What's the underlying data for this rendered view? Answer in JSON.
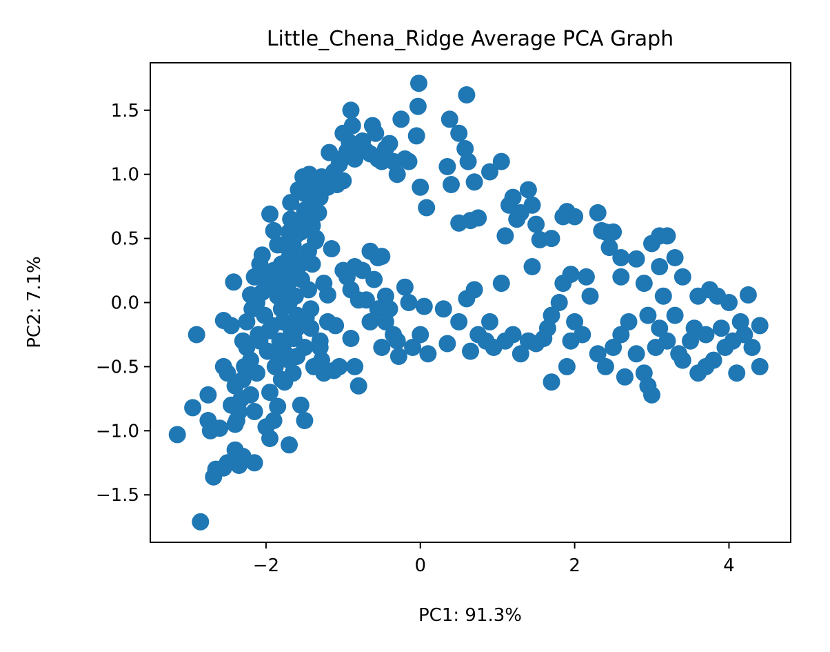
{
  "chart_data": {
    "type": "scatter",
    "title": "Little_Chena_Ridge Average PCA Graph",
    "xlabel": "PC1: 91.3%",
    "ylabel": "PC2: 7.1%",
    "xlim": [
      -3.5,
      4.8
    ],
    "ylim": [
      -1.87,
      1.87
    ],
    "xticks": [
      -2,
      0,
      2,
      4
    ],
    "xtick_labels": [
      "−2",
      "0",
      "2",
      "4"
    ],
    "yticks": [
      -1.5,
      -1.0,
      -0.5,
      0.0,
      0.5,
      1.0,
      1.5
    ],
    "ytick_labels": [
      "−1.5",
      "−1.0",
      "−0.5",
      "0.0",
      "0.5",
      "1.0",
      "1.5"
    ],
    "grid": false,
    "color": "#1f77b4",
    "series": [
      {
        "points": [
          [
            -3.15,
            -1.03
          ],
          [
            -2.85,
            -1.71
          ],
          [
            -2.9,
            -0.25
          ],
          [
            -2.95,
            -0.82
          ],
          [
            -2.75,
            -0.72
          ],
          [
            -2.75,
            -0.92
          ],
          [
            -2.72,
            -1.0
          ],
          [
            -2.68,
            -1.36
          ],
          [
            -2.65,
            -1.3
          ],
          [
            -2.55,
            -1.29
          ],
          [
            -2.5,
            -1.25
          ],
          [
            -2.6,
            -0.98
          ],
          [
            -2.55,
            -0.5
          ],
          [
            -2.5,
            -0.55
          ],
          [
            -2.55,
            -0.14
          ],
          [
            -2.45,
            -0.18
          ],
          [
            -2.45,
            -0.8
          ],
          [
            -2.4,
            -0.65
          ],
          [
            -2.4,
            -0.95
          ],
          [
            -2.4,
            -1.15
          ],
          [
            -2.35,
            -1.27
          ],
          [
            -2.3,
            -1.2
          ],
          [
            -2.3,
            -0.6
          ],
          [
            -2.3,
            -0.3
          ],
          [
            -2.25,
            -0.15
          ],
          [
            -2.2,
            -0.45
          ],
          [
            -2.2,
            -0.72
          ],
          [
            -2.15,
            -1.25
          ],
          [
            -2.15,
            -0.85
          ],
          [
            -2.12,
            -0.55
          ],
          [
            -2.1,
            -0.25
          ],
          [
            -2.05,
            0.08
          ],
          [
            -2.0,
            -0.97
          ],
          [
            -1.95,
            -1.06
          ],
          [
            -1.9,
            -0.92
          ],
          [
            -1.85,
            -0.81
          ],
          [
            -1.8,
            -0.6
          ],
          [
            -1.75,
            -0.4
          ],
          [
            -1.7,
            -1.11
          ],
          [
            -1.65,
            -0.55
          ],
          [
            -1.55,
            -0.8
          ],
          [
            -1.5,
            -0.92
          ],
          [
            -2.42,
            0.16
          ],
          [
            -2.2,
            0.06
          ],
          [
            -2.15,
            0.2
          ],
          [
            -2.08,
            0.3
          ],
          [
            -2.05,
            0.37
          ],
          [
            -1.95,
            0.69
          ],
          [
            -1.9,
            0.56
          ],
          [
            -1.85,
            0.45
          ],
          [
            -1.85,
            0.05
          ],
          [
            -1.8,
            0.15
          ],
          [
            -1.8,
            -0.05
          ],
          [
            -1.78,
            -0.15
          ],
          [
            -1.75,
            -0.3
          ],
          [
            -1.72,
            0.25
          ],
          [
            -1.7,
            0.35
          ],
          [
            -1.7,
            0.55
          ],
          [
            -1.68,
            0.65
          ],
          [
            -1.65,
            0.45
          ],
          [
            -1.62,
            0.05
          ],
          [
            -1.6,
            -0.1
          ],
          [
            -1.6,
            -0.2
          ],
          [
            -1.58,
            0.2
          ],
          [
            -1.55,
            0.3
          ],
          [
            -1.55,
            0.55
          ],
          [
            -1.52,
            0.66
          ],
          [
            -1.5,
            0.72
          ],
          [
            -1.5,
            0.85
          ],
          [
            -1.48,
            0.95
          ],
          [
            -1.45,
            0.4
          ],
          [
            -1.45,
            0.1
          ],
          [
            -1.42,
            -0.05
          ],
          [
            -1.4,
            0.3
          ],
          [
            -1.4,
            0.6
          ],
          [
            -1.38,
            0.78
          ],
          [
            -1.35,
            0.9
          ],
          [
            -1.35,
            0.5
          ],
          [
            -1.32,
            0.7
          ],
          [
            -1.3,
            0.82
          ],
          [
            -1.3,
            -0.3
          ],
          [
            -1.28,
            -0.45
          ],
          [
            -1.25,
            0.15
          ],
          [
            -1.2,
            0.06
          ],
          [
            -1.2,
            -0.15
          ],
          [
            -1.18,
            1.17
          ],
          [
            -1.15,
            0.42
          ],
          [
            -1.12,
            -0.53
          ],
          [
            -1.1,
            -0.18
          ],
          [
            -1.05,
            1.08
          ],
          [
            -1.0,
            0.95
          ],
          [
            -1.0,
            1.32
          ],
          [
            -0.95,
            1.18
          ],
          [
            -0.9,
            1.5
          ],
          [
            -0.88,
            1.38
          ],
          [
            -0.85,
            1.12
          ],
          [
            -0.8,
            1.2
          ],
          [
            -0.75,
            1.26
          ],
          [
            -0.7,
            1.18
          ],
          [
            -0.65,
            1.16
          ],
          [
            -0.62,
            1.38
          ],
          [
            -0.58,
            1.32
          ],
          [
            -0.55,
            1.12
          ],
          [
            -0.5,
            1.1
          ],
          [
            -0.45,
            1.2
          ],
          [
            -0.4,
            1.24
          ],
          [
            -0.35,
            1.1
          ],
          [
            -0.3,
            1.0
          ],
          [
            -0.25,
            1.43
          ],
          [
            -0.2,
            1.12
          ],
          [
            -0.15,
            1.1
          ],
          [
            -0.05,
            1.3
          ],
          [
            -0.03,
            1.53
          ],
          [
            -0.02,
            1.71
          ],
          [
            -0.0,
            0.9
          ],
          [
            0.08,
            0.74
          ],
          [
            0.35,
            1.06
          ],
          [
            0.38,
            1.43
          ],
          [
            0.4,
            0.92
          ],
          [
            0.5,
            1.32
          ],
          [
            0.5,
            0.62
          ],
          [
            0.58,
            1.2
          ],
          [
            0.6,
            1.62
          ],
          [
            0.62,
            1.1
          ],
          [
            0.65,
            0.64
          ],
          [
            0.7,
            0.94
          ],
          [
            0.75,
            0.66
          ],
          [
            0.9,
            1.02
          ],
          [
            1.05,
            1.1
          ],
          [
            1.1,
            0.52
          ],
          [
            1.15,
            0.76
          ],
          [
            1.2,
            0.82
          ],
          [
            1.25,
            0.65
          ],
          [
            1.3,
            0.7
          ],
          [
            1.4,
            0.88
          ],
          [
            1.45,
            0.76
          ],
          [
            1.5,
            0.61
          ],
          [
            1.55,
            0.49
          ],
          [
            1.7,
            0.5
          ],
          [
            1.85,
            0.67
          ],
          [
            1.9,
            0.71
          ],
          [
            2.0,
            0.67
          ],
          [
            2.3,
            0.7
          ],
          [
            2.35,
            0.56
          ],
          [
            2.4,
            0.55
          ],
          [
            2.45,
            0.43
          ],
          [
            2.5,
            0.55
          ],
          [
            2.6,
            0.35
          ],
          [
            2.8,
            0.34
          ],
          [
            3.0,
            0.46
          ],
          [
            3.1,
            0.52
          ],
          [
            3.2,
            0.52
          ],
          [
            3.3,
            0.35
          ],
          [
            -1.0,
            0.25
          ],
          [
            -0.95,
            0.2
          ],
          [
            -0.9,
            0.1
          ],
          [
            -0.85,
            0.28
          ],
          [
            -0.8,
            0.02
          ],
          [
            -0.75,
            0.25
          ],
          [
            -0.7,
            0.02
          ],
          [
            -0.65,
            0.4
          ],
          [
            -0.6,
            0.18
          ],
          [
            -0.55,
            0.35
          ],
          [
            -0.5,
            0.36
          ],
          [
            -0.45,
            0.05
          ],
          [
            -0.4,
            -0.05
          ],
          [
            -0.3,
            -0.3
          ],
          [
            -0.2,
            0.12
          ],
          [
            -0.15,
            0.0
          ],
          [
            -0.1,
            -0.35
          ],
          [
            0.0,
            -0.25
          ],
          [
            0.05,
            -0.03
          ],
          [
            0.1,
            -0.4
          ],
          [
            0.3,
            -0.05
          ],
          [
            0.35,
            -0.32
          ],
          [
            0.5,
            -0.15
          ],
          [
            0.6,
            0.03
          ],
          [
            0.65,
            -0.38
          ],
          [
            0.7,
            0.1
          ],
          [
            0.75,
            -0.25
          ],
          [
            0.85,
            -0.3
          ],
          [
            0.9,
            -0.15
          ],
          [
            0.95,
            -0.35
          ],
          [
            1.05,
            0.15
          ],
          [
            1.1,
            -0.3
          ],
          [
            1.2,
            -0.25
          ],
          [
            1.3,
            -0.4
          ],
          [
            1.4,
            -0.3
          ],
          [
            1.5,
            -0.32
          ],
          [
            1.6,
            -0.28
          ],
          [
            1.65,
            -0.2
          ],
          [
            1.7,
            -0.1
          ],
          [
            1.8,
            0.0
          ],
          [
            1.9,
            -0.5
          ],
          [
            1.95,
            -0.3
          ],
          [
            2.0,
            -0.15
          ],
          [
            2.1,
            -0.25
          ],
          [
            2.2,
            0.05
          ],
          [
            2.3,
            -0.4
          ],
          [
            2.4,
            -0.5
          ],
          [
            2.5,
            -0.35
          ],
          [
            2.6,
            -0.25
          ],
          [
            2.7,
            -0.15
          ],
          [
            2.8,
            -0.4
          ],
          [
            2.9,
            -0.55
          ],
          [
            2.95,
            -0.65
          ],
          [
            3.0,
            -0.72
          ],
          [
            3.05,
            -0.35
          ],
          [
            3.1,
            -0.2
          ],
          [
            3.2,
            -0.3
          ],
          [
            3.3,
            -0.1
          ],
          [
            3.4,
            -0.45
          ],
          [
            3.5,
            -0.3
          ],
          [
            3.6,
            -0.55
          ],
          [
            3.7,
            -0.25
          ],
          [
            3.8,
            -0.45
          ],
          [
            3.9,
            -0.2
          ],
          [
            4.0,
            0.0
          ],
          [
            4.05,
            -0.3
          ],
          [
            4.1,
            -0.55
          ],
          [
            4.2,
            -0.25
          ],
          [
            4.25,
            0.06
          ],
          [
            4.3,
            -0.35
          ],
          [
            4.4,
            -0.18
          ],
          [
            4.4,
            -0.5
          ],
          [
            1.45,
            0.28
          ],
          [
            1.7,
            -0.62
          ],
          [
            1.85,
            0.15
          ],
          [
            1.95,
            0.22
          ],
          [
            2.15,
            0.2
          ],
          [
            2.6,
            0.2
          ],
          [
            2.9,
            0.15
          ],
          [
            3.1,
            0.28
          ],
          [
            3.4,
            0.2
          ],
          [
            3.6,
            0.05
          ],
          [
            3.75,
            0.1
          ],
          [
            3.85,
            0.05
          ],
          [
            2.65,
            -0.58
          ],
          [
            2.95,
            -0.1
          ],
          [
            3.15,
            0.05
          ],
          [
            3.35,
            -0.4
          ],
          [
            3.55,
            -0.2
          ],
          [
            3.7,
            -0.5
          ],
          [
            3.95,
            -0.35
          ],
          [
            4.15,
            -0.15
          ],
          [
            -1.25,
            -0.55
          ],
          [
            -0.85,
            -0.5
          ],
          [
            -0.8,
            -0.65
          ],
          [
            -0.9,
            -0.28
          ],
          [
            -0.65,
            -0.15
          ],
          [
            -0.5,
            -0.35
          ],
          [
            -0.45,
            -0.15
          ],
          [
            -0.35,
            -0.25
          ],
          [
            -0.28,
            -0.42
          ],
          [
            -0.55,
            -0.05
          ],
          [
            -1.05,
            -0.5
          ],
          [
            -1.3,
            -0.35
          ],
          [
            -1.38,
            -0.5
          ],
          [
            -1.42,
            -0.2
          ],
          [
            -1.5,
            -0.35
          ],
          [
            -1.6,
            -0.42
          ],
          [
            -1.68,
            -0.2
          ],
          [
            -1.75,
            -0.02
          ],
          [
            -1.8,
            0.3
          ],
          [
            -1.88,
            0.1
          ],
          [
            -1.92,
            -0.18
          ],
          [
            -1.98,
            -0.38
          ],
          [
            -2.02,
            -0.1
          ],
          [
            -2.08,
            -0.3
          ],
          [
            -2.12,
            0.0
          ],
          [
            -2.18,
            -0.05
          ],
          [
            -2.25,
            -0.35
          ],
          [
            -2.28,
            -0.5
          ],
          [
            -2.32,
            -0.75
          ],
          [
            -2.35,
            -0.85
          ],
          [
            -2.38,
            -0.92
          ],
          [
            -1.95,
            -0.7
          ],
          [
            -1.88,
            -0.5
          ],
          [
            -1.82,
            -0.3
          ],
          [
            -1.78,
            0.45
          ],
          [
            -1.72,
            0.12
          ],
          [
            -1.66,
            0.38
          ],
          [
            -1.62,
            0.52
          ],
          [
            -1.56,
            0.62
          ],
          [
            -1.46,
            0.7
          ],
          [
            -1.42,
            0.58
          ],
          [
            -1.36,
            0.48
          ],
          [
            -1.32,
            0.82
          ],
          [
            -1.28,
            0.98
          ],
          [
            -1.24,
            0.92
          ],
          [
            -1.68,
            0.78
          ],
          [
            -1.58,
            0.88
          ],
          [
            -1.52,
            0.98
          ],
          [
            -1.44,
            1.0
          ],
          [
            -1.2,
            0.9
          ],
          [
            -1.12,
            1.02
          ],
          [
            -1.08,
            0.92
          ],
          [
            -1.02,
            1.12
          ],
          [
            -0.92,
            1.25
          ],
          [
            -1.48,
            -0.12
          ],
          [
            -1.54,
            0.18
          ],
          [
            -1.64,
            -0.28
          ],
          [
            -1.7,
            -0.45
          ],
          [
            -1.76,
            -0.62
          ],
          [
            -1.86,
            -0.4
          ],
          [
            -1.96,
            -0.22
          ],
          [
            -2.0,
            0.18
          ],
          [
            -1.9,
            0.25
          ],
          [
            -1.82,
            0.12
          ],
          [
            -1.7,
            0.0
          ]
        ]
      }
    ]
  }
}
